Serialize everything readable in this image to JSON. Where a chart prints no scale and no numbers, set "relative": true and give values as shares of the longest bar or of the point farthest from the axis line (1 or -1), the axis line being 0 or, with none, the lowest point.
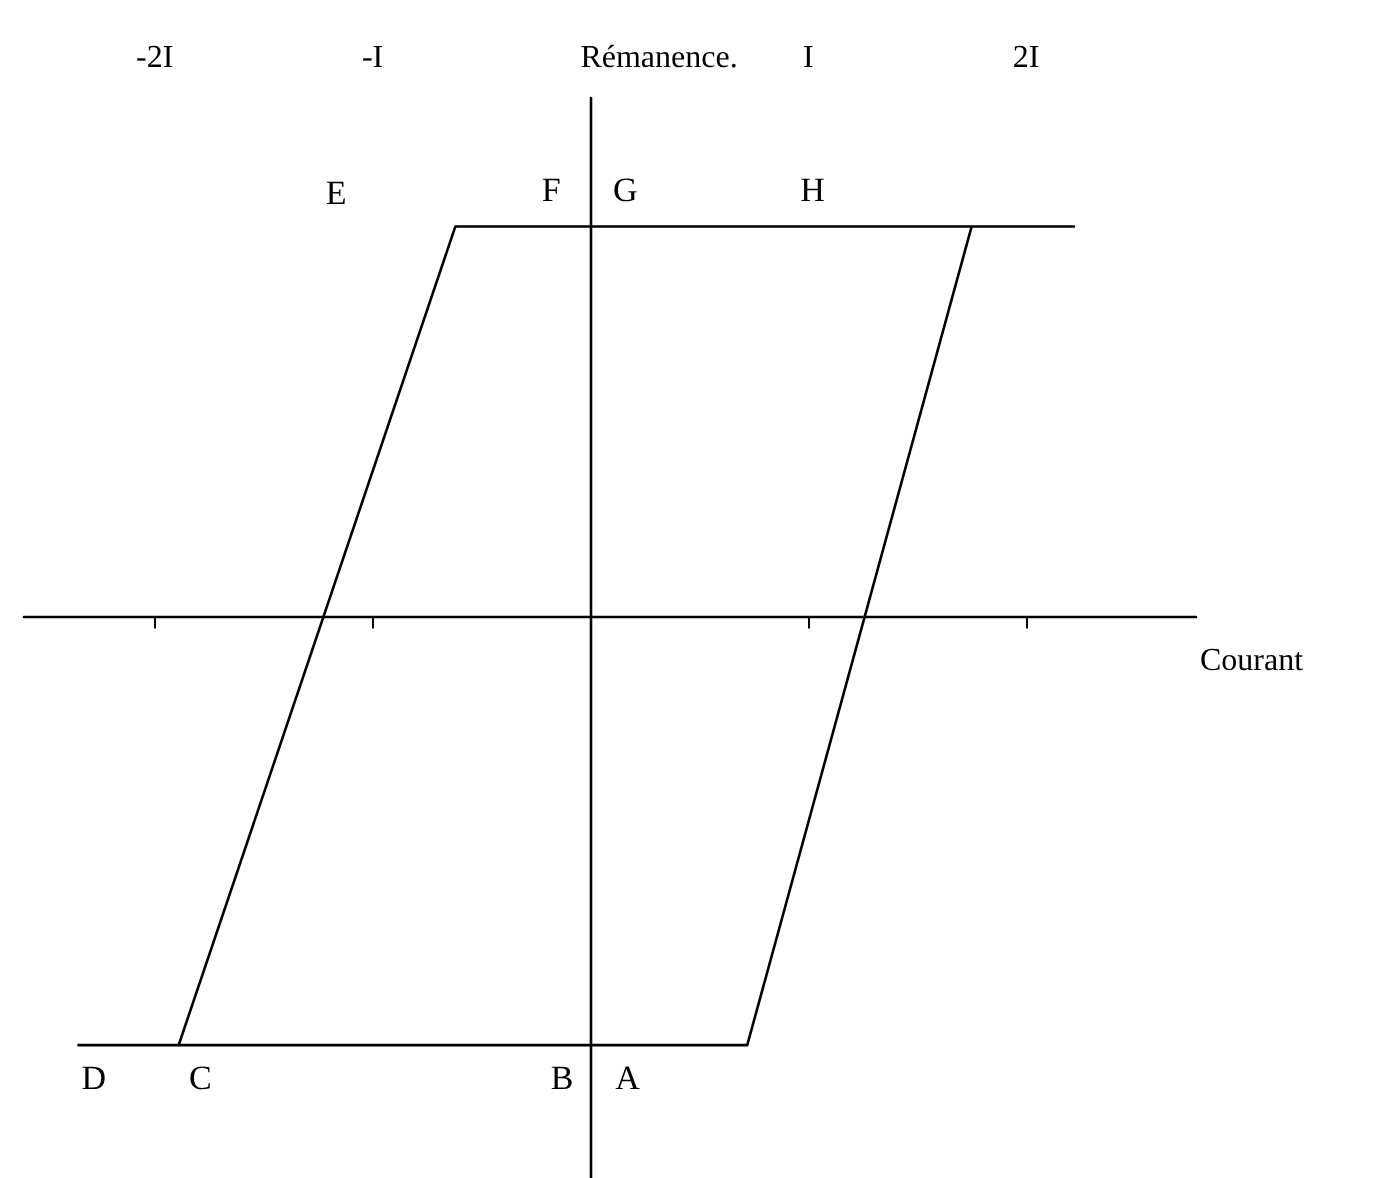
{
  "chart_data": {
    "type": "line",
    "relative": true,
    "xlabel": "Courant",
    "ylabel": "Rémanence.",
    "xlim": [
      -2.6,
      2.78
    ],
    "xticks": [
      {
        "value": -2,
        "label": "-2I"
      },
      {
        "value": -1,
        "label": "-I"
      },
      {
        "value": 1,
        "label": "I"
      },
      {
        "value": 2,
        "label": "2I"
      }
    ],
    "series": [
      {
        "color": "#000000",
        "x": [
          2.22,
          -0.62,
          -1.89,
          -2.35,
          0.72,
          1.75
        ],
        "values": [
          0.91,
          0.91,
          -1,
          -1,
          -1,
          0.91
        ]
      }
    ],
    "annotations": [
      "E",
      {
        "text": "F",
        "x": -0.18,
        "y": 0.91
      },
      {
        "text": "G",
        "x": 0.16,
        "y": 0.91
      },
      {
        "text": "H",
        "x": 1.02,
        "y": 0.91
      },
      {
        "text": "D",
        "x": -2.28,
        "y": -1
      },
      {
        "text": "C",
        "x": -1.79,
        "y": -1
      },
      {
        "text": "B",
        "x": -0.13,
        "y": -1
      },
      {
        "text": "A",
        "x": 0.17,
        "y": -1
      }
    ],
    "grid": false,
    "marker": "none",
    "line_style": "solid"
  }
}
